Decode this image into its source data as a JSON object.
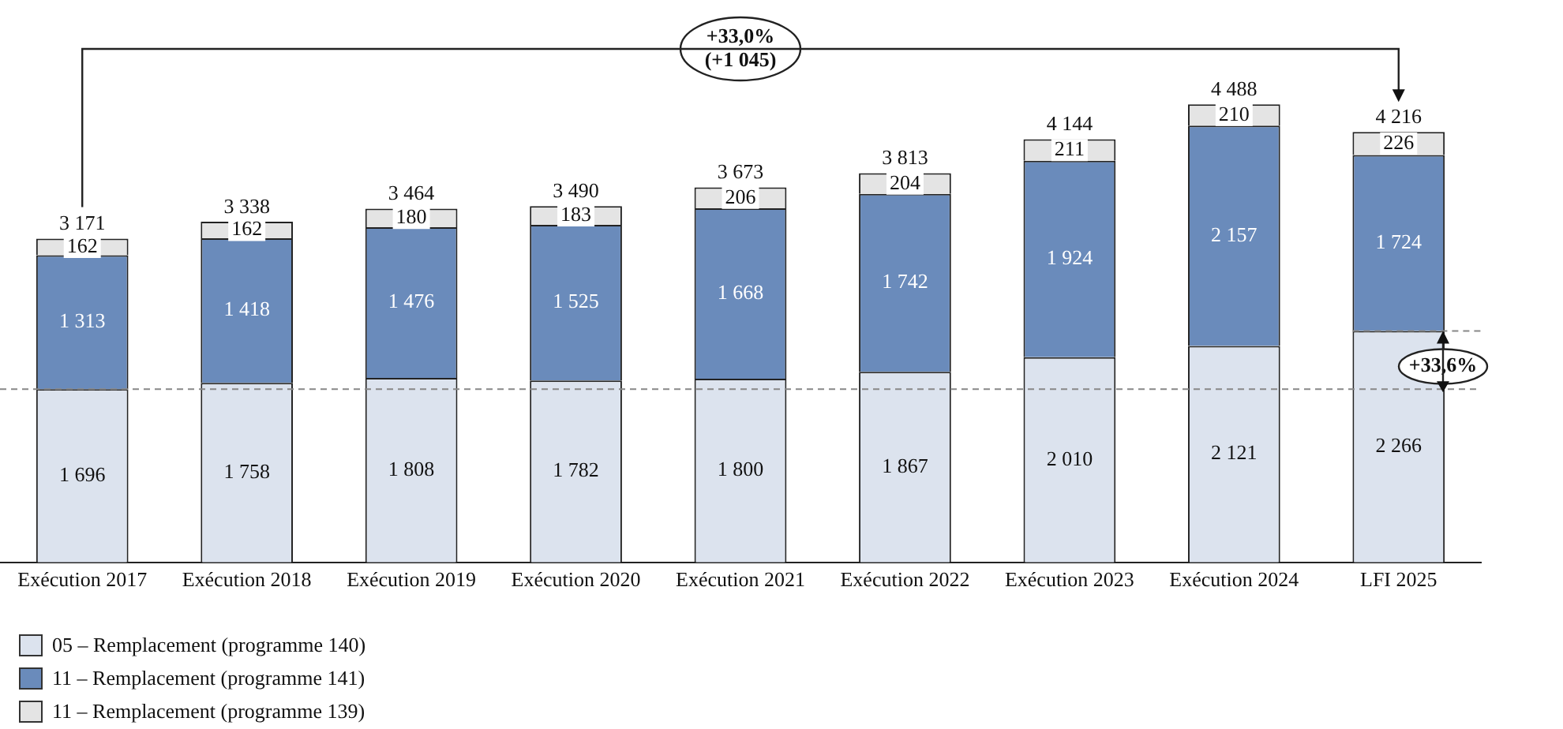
{
  "chart_data": {
    "type": "bar",
    "stacked": true,
    "categories": [
      "Exécution 2017",
      "Exécution 2018",
      "Exécution 2019",
      "Exécution 2020",
      "Exécution 2021",
      "Exécution 2022",
      "Exécution 2023",
      "Exécution 2024",
      "LFI 2025"
    ],
    "series": [
      {
        "name": "05 – Remplacement (programme 140)",
        "color": "#dce3ee",
        "values": [
          1696,
          1758,
          1808,
          1782,
          1800,
          1867,
          2010,
          2121,
          2266
        ],
        "value_labels": [
          "1 696",
          "1 758",
          "1 808",
          "1 782",
          "1 800",
          "1 867",
          "2 010",
          "2 121",
          "2 266"
        ]
      },
      {
        "name": "11 – Remplacement (programme 141)",
        "color": "#6a8bbb",
        "values": [
          1313,
          1418,
          1476,
          1525,
          1668,
          1742,
          1924,
          2157,
          1724
        ],
        "value_labels": [
          "1 313",
          "1 418",
          "1 476",
          "1 525",
          "1 668",
          "1 742",
          "1 924",
          "2 157",
          "1 724"
        ]
      },
      {
        "name": "11 – Remplacement (programme 139)",
        "color": "#e4e4e4",
        "values": [
          162,
          162,
          180,
          183,
          206,
          204,
          211,
          210,
          226
        ],
        "value_labels": [
          "162",
          "162",
          "180",
          "183",
          "206",
          "204",
          "211",
          "210",
          "226"
        ]
      }
    ],
    "totals": [
      "3 171",
      "3 338",
      "3 464",
      "3 490",
      "3 673",
      "3 813",
      "4 144",
      "4 488",
      "4 216"
    ],
    "ref_lines": [
      {
        "axis": "y",
        "value": 1696,
        "line_style": "dashed",
        "color": "#888888"
      },
      {
        "axis": "y",
        "value": 2266,
        "line_style": "dashed",
        "color": "#888888"
      }
    ],
    "annotations": [
      "+33,0%\n(+1 045)",
      "+33,6%"
    ],
    "legend": "bottom left",
    "grid": false
  }
}
